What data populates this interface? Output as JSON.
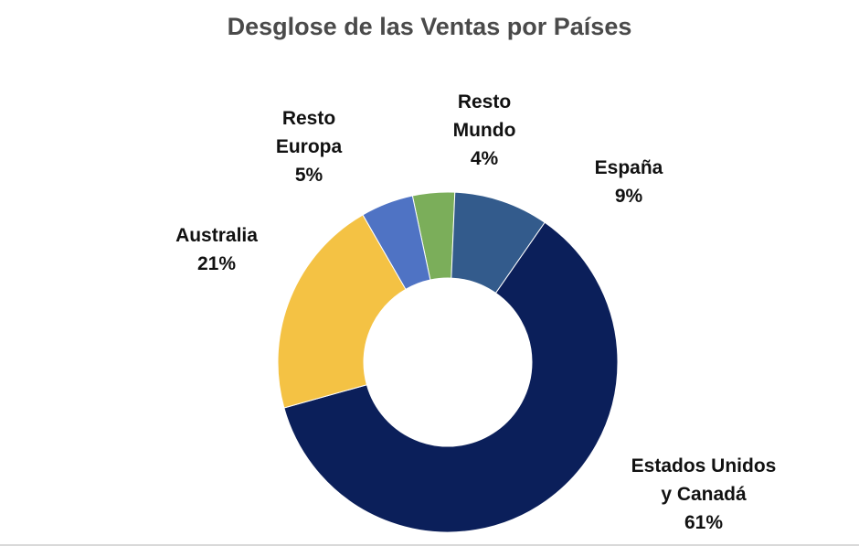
{
  "chart_data": {
    "type": "pie",
    "variant": "donut",
    "title": "Desglose de las Ventas por Países",
    "slices": [
      {
        "label_lines": [
          "Resto",
          "Mundo"
        ],
        "value": 4,
        "display": "4%",
        "color": "#7bae5a"
      },
      {
        "label_lines": [
          "España"
        ],
        "value": 9,
        "display": "9%",
        "color": "#335b8c"
      },
      {
        "label_lines": [
          "Estados Unidos",
          "y Canadá"
        ],
        "value": 61,
        "display": "61%",
        "color": "#0b1f5a"
      },
      {
        "label_lines": [
          "Australia"
        ],
        "value": 21,
        "display": "21%",
        "color": "#f4c244"
      },
      {
        "label_lines": [
          "Resto",
          "Europa"
        ],
        "value": 5,
        "display": "5%",
        "color": "#4f73c4"
      }
    ]
  }
}
